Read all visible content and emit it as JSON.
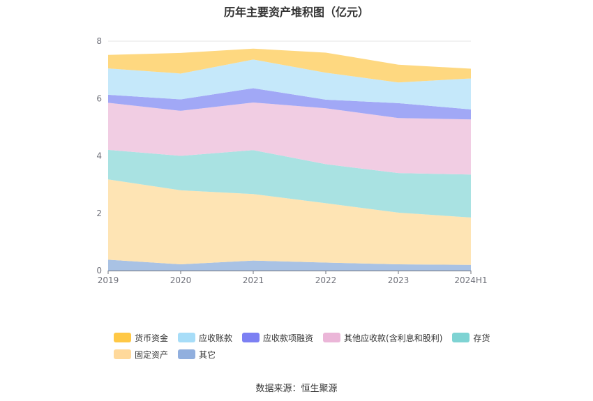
{
  "chart_data": {
    "type": "area",
    "stacked": true,
    "title": "历年主要资产堆积图（亿元）",
    "categories": [
      "2019",
      "2020",
      "2021",
      "2022",
      "2023",
      "2024H1"
    ],
    "ylim": [
      0,
      8
    ],
    "yticks": [
      0,
      2,
      4,
      6,
      8
    ],
    "grid": true,
    "legend_position": "bottom",
    "series": [
      {
        "name": "其它",
        "color": "#a9c2e4",
        "values": [
          0.38,
          0.22,
          0.35,
          0.28,
          0.22,
          0.2
        ]
      },
      {
        "name": "固定资产",
        "color": "#fee4b4",
        "values": [
          2.8,
          2.58,
          2.32,
          2.07,
          1.8,
          1.65
        ]
      },
      {
        "name": "存货",
        "color": "#a9e2e2",
        "values": [
          1.03,
          1.2,
          1.53,
          1.36,
          1.38,
          1.5
        ]
      },
      {
        "name": "其他应收款(含利息和股利)",
        "color": "#f1cde3",
        "values": [
          1.64,
          1.57,
          1.66,
          1.95,
          1.92,
          1.92
        ]
      },
      {
        "name": "应收款项融资",
        "color": "#a1a8f6",
        "values": [
          0.28,
          0.4,
          0.5,
          0.3,
          0.52,
          0.35
        ]
      },
      {
        "name": "应收账款",
        "color": "#c5e8fa",
        "values": [
          0.92,
          0.9,
          1.0,
          0.94,
          0.72,
          1.08
        ]
      },
      {
        "name": "货币资金",
        "color": "#fed880",
        "values": [
          0.47,
          0.72,
          0.38,
          0.7,
          0.62,
          0.34
        ]
      }
    ]
  },
  "legend": {
    "row1": [
      {
        "name": "货币资金",
        "color": "#ffc845"
      },
      {
        "name": "应收账款",
        "color": "#a7ddf8"
      },
      {
        "name": "应收款项融资",
        "color": "#7c80f3"
      },
      {
        "name": "其他应收款(含利息和股利)",
        "color": "#ebb6d8"
      },
      {
        "name": "存货",
        "color": "#7ed3d3"
      }
    ],
    "row2": [
      {
        "name": "固定资产",
        "color": "#ffd99b"
      },
      {
        "name": "其它",
        "color": "#91afde"
      }
    ]
  },
  "source": "数据来源：恒生聚源"
}
